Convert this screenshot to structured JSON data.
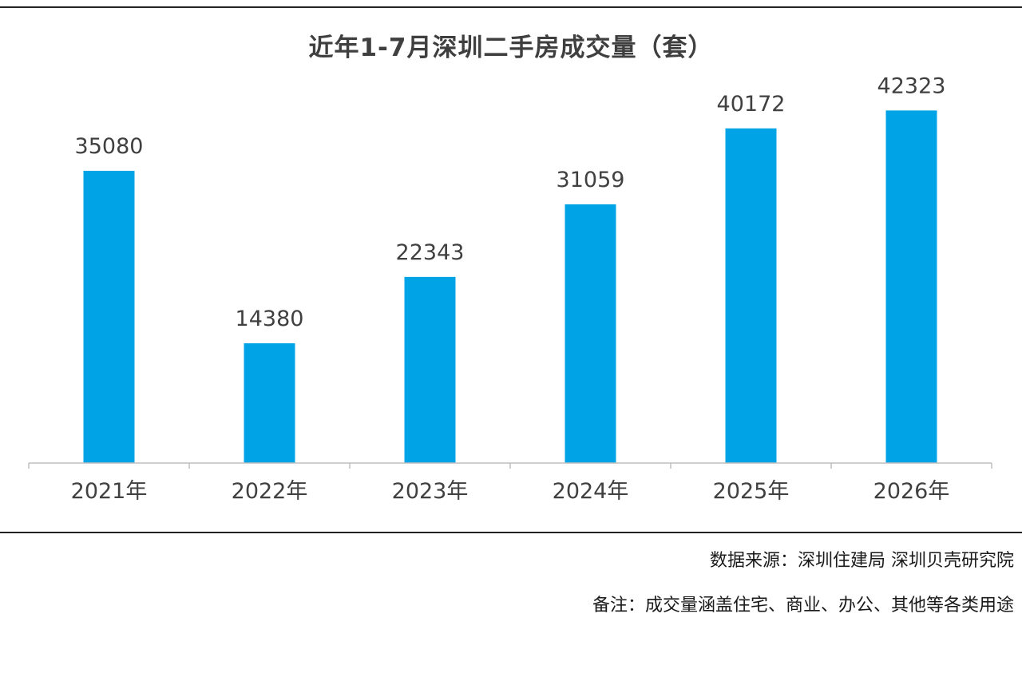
{
  "chart_data": {
    "type": "bar",
    "title": "近年1-7月深圳二手房成交量（套）",
    "categories": [
      "2021年",
      "2022年",
      "2023年",
      "2024年",
      "2025年",
      "2026年"
    ],
    "values": [
      35080,
      14380,
      22343,
      31059,
      40172,
      42323
    ],
    "xlabel": "",
    "ylabel": "",
    "ylim": [
      0,
      46000
    ],
    "grid": false,
    "legend": "none",
    "bar_color": "#00A3E6",
    "axis_color": "#BFBFBF"
  },
  "notes": {
    "source": "数据来源：深圳住建局 深圳贝壳研究院",
    "remark": "备注：成交量涵盖住宅、商业、办公、其他等各类用途"
  }
}
